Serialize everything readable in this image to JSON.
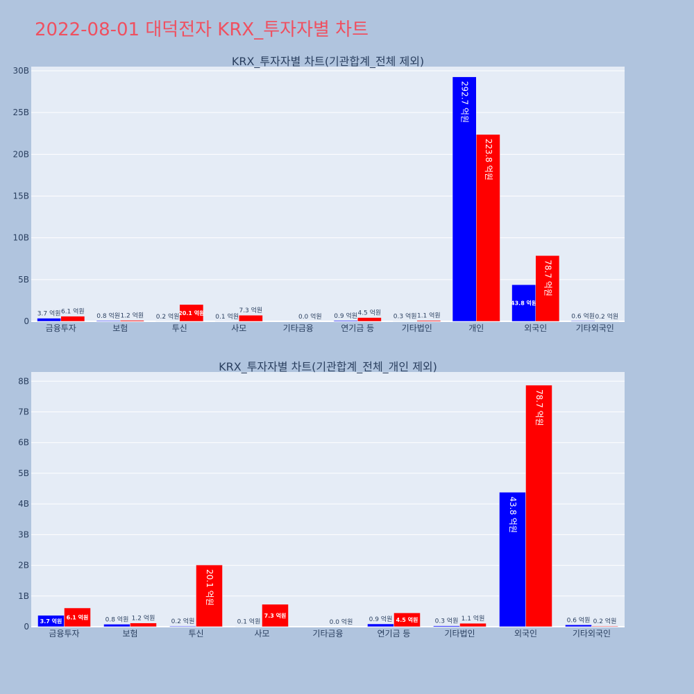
{
  "page_title": "2022-08-01 대덕전자 KRX_투자자별 차트",
  "colors": {
    "page_bg": "#b0c4de",
    "plot_bg": "#e5ecf6",
    "buy": "#0000ff",
    "sell": "#ff0000",
    "title": "#ef5060"
  },
  "chart_data": [
    {
      "type": "bar",
      "title": "KRX_투자자별 차트(기관합계_전체 제외)",
      "categories": [
        "금융투자",
        "보험",
        "투신",
        "사모",
        "기타금융",
        "연기금 등",
        "기타법인",
        "개인",
        "외국인",
        "기타외국인"
      ],
      "ylim": [
        0,
        30.5
      ],
      "yticks": [
        0,
        5,
        10,
        15,
        20,
        25,
        30
      ],
      "ytick_labels": [
        "0",
        "5B",
        "10B",
        "15B",
        "20B",
        "25B",
        "30B"
      ],
      "grid": true,
      "series": [
        {
          "color": "#0000ff",
          "values": [
            0.37,
            0.08,
            0.02,
            0.01,
            0.0,
            0.09,
            0.03,
            29.27,
            4.38,
            0.06
          ],
          "labels": [
            "3.7 억원",
            "0.8 억원",
            "0.2 억원",
            "0.1 억원",
            "",
            "0.9 억원",
            "0.3 억원",
            "292.7 억원",
            "43.8 억원",
            "0.6 억원"
          ]
        },
        {
          "color": "#ff0000",
          "values": [
            0.61,
            0.12,
            2.01,
            0.73,
            0.0,
            0.45,
            0.11,
            22.38,
            7.87,
            0.02
          ],
          "labels": [
            "6.1 억원",
            "1.2 억원",
            "20.1 억원",
            "7.3 억원",
            "0.0 억원",
            "4.5 억원",
            "1.1 억원",
            "223.8 억원",
            "78.7 억원",
            "0.2 억원"
          ]
        }
      ]
    },
    {
      "type": "bar",
      "title": "KRX_투자자별 차트(기관합계_전체_개인 제외)",
      "categories": [
        "금융투자",
        "보험",
        "투신",
        "사모",
        "기타금융",
        "연기금 등",
        "기타법인",
        "외국인",
        "기타외국인"
      ],
      "ylim": [
        0,
        8.3
      ],
      "yticks": [
        0,
        1,
        2,
        3,
        4,
        5,
        6,
        7,
        8
      ],
      "ytick_labels": [
        "0",
        "1B",
        "2B",
        "3B",
        "4B",
        "5B",
        "6B",
        "7B",
        "8B"
      ],
      "grid": true,
      "series": [
        {
          "color": "#0000ff",
          "values": [
            0.37,
            0.08,
            0.02,
            0.01,
            0.0,
            0.09,
            0.03,
            4.38,
            0.06
          ],
          "labels": [
            "3.7 억원",
            "0.8 억원",
            "0.2 억원",
            "0.1 억원",
            "",
            "0.9 억원",
            "0.3 억원",
            "43.8 억원",
            "0.6 억원"
          ]
        },
        {
          "color": "#ff0000",
          "values": [
            0.61,
            0.12,
            2.01,
            0.73,
            0.0,
            0.45,
            0.11,
            7.87,
            0.02
          ],
          "labels": [
            "6.1 억원",
            "1.2 억원",
            "20.1 억원",
            "7.3 억원",
            "0.0 억원",
            "4.5 억원",
            "1.1 억원",
            "78.7 억원",
            "0.2 억원"
          ]
        }
      ]
    }
  ]
}
